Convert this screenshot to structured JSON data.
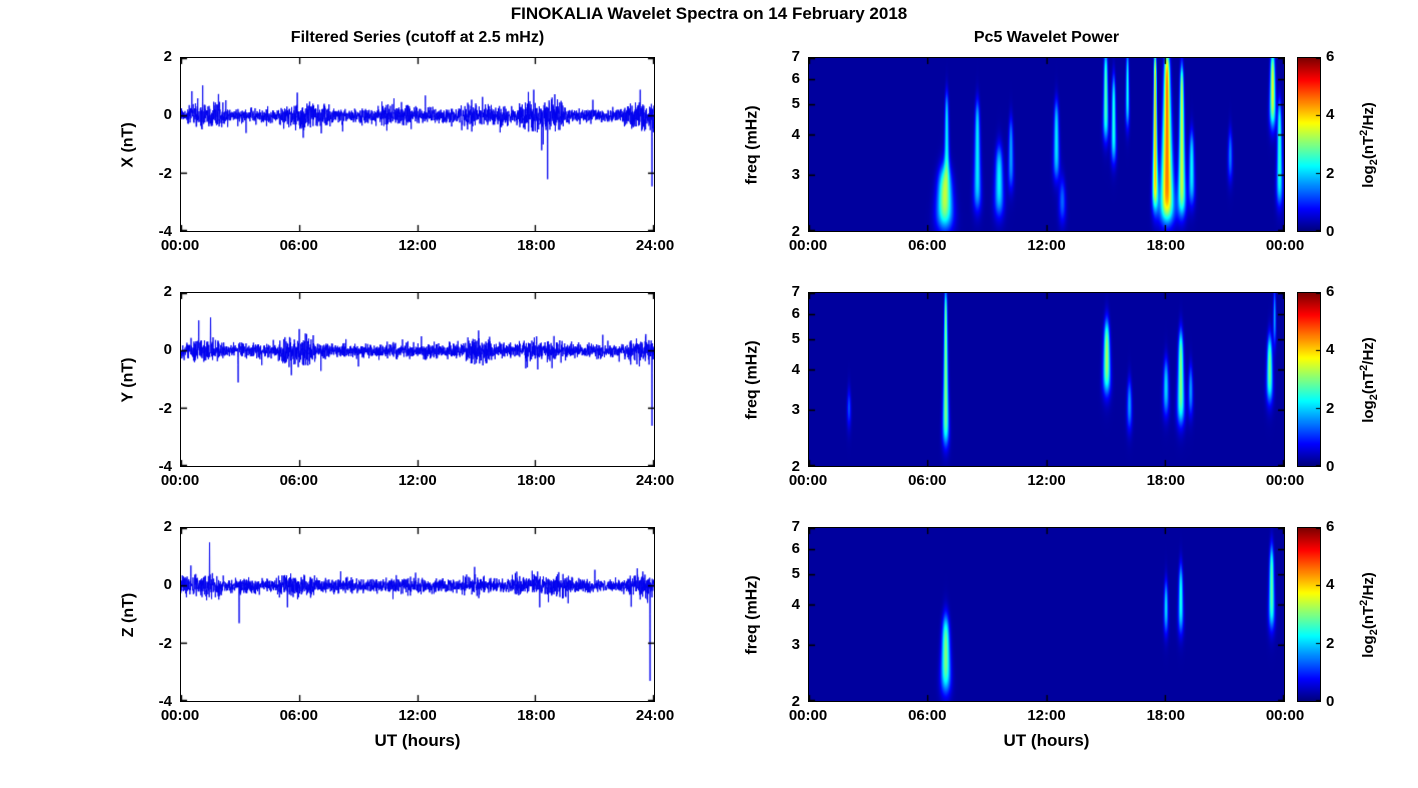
{
  "title": "FINOKALIA Wavelet Spectra on 14 February 2018",
  "left_column": {
    "title": "Filtered Series (cutoff at 2.5 mHz)",
    "xlabel": "UT (hours)",
    "x_ticks": [
      "00:00",
      "06:00",
      "12:00",
      "18:00",
      "24:00"
    ],
    "y_ticks": [
      "2",
      "0",
      "-2",
      "-4"
    ],
    "rows": [
      {
        "ylabel": "X (nT)"
      },
      {
        "ylabel": "Y (nT)"
      },
      {
        "ylabel": "Z (nT)"
      }
    ]
  },
  "right_column": {
    "title": "Pc5 Wavelet Power",
    "xlabel": "UT (hours)",
    "ylabel": "freq (mHz)",
    "x_ticks": [
      "00:00",
      "06:00",
      "12:00",
      "18:00",
      "00:00"
    ],
    "y_ticks": [
      "7",
      "6",
      "5",
      "4",
      "3",
      "2"
    ],
    "colorbar": {
      "ticks": [
        "6",
        "4",
        "2",
        "0"
      ],
      "label_parts": {
        "pre": "log",
        "sub": "2",
        "mid": "(nT",
        "sup": "2",
        "post": "/Hz)"
      }
    }
  },
  "chart_data": {
    "figure_title": "FINOKALIA Wavelet Spectra on 14 February 2018",
    "station": "FINOKALIA",
    "date": "14 February 2018",
    "time_series": {
      "type": "line",
      "title": "Filtered Series (cutoff at 2.5 mHz)",
      "color": "#0000EE",
      "x_range_hours": [
        0,
        24
      ],
      "y_range_nT": [
        -4,
        2
      ],
      "xlabel": "UT (hours)",
      "noise_std_nT": 0.12,
      "series": [
        {
          "name": "X (nT)",
          "seed": 101,
          "bursts": [
            [
              0.4,
              2.2,
              1.6
            ],
            [
              5.2,
              7.6,
              1.7
            ],
            [
              10.2,
              11.6,
              1.5
            ],
            [
              14.2,
              16.3,
              1.6
            ],
            [
              17.2,
              19.2,
              2.3
            ],
            [
              22.7,
              24,
              1.9
            ]
          ],
          "spikes": [
            [
              0.55,
              0.85
            ],
            [
              1.1,
              1.05
            ],
            [
              1.9,
              0.75
            ],
            [
              3.3,
              -0.6
            ],
            [
              5.9,
              0.8
            ],
            [
              8.2,
              -0.55
            ],
            [
              10.8,
              0.6
            ],
            [
              12.4,
              0.7
            ],
            [
              15.3,
              0.65
            ],
            [
              17.9,
              0.9
            ],
            [
              18.3,
              -1.2
            ],
            [
              18.6,
              -2.2
            ],
            [
              20.9,
              0.55
            ],
            [
              23.3,
              0.9
            ],
            [
              23.9,
              -2.45
            ]
          ]
        },
        {
          "name": "Y (nT)",
          "seed": 202,
          "bursts": [
            [
              0.5,
              2.0,
              1.5
            ],
            [
              5.2,
              6.6,
              2.0
            ],
            [
              14.7,
              15.7,
              1.7
            ],
            [
              17.4,
              19.1,
              1.5
            ],
            [
              22.9,
              24,
              1.7
            ]
          ],
          "spikes": [
            [
              0.9,
              1.05
            ],
            [
              1.5,
              1.15
            ],
            [
              2.9,
              -1.1
            ],
            [
              4.1,
              -0.5
            ],
            [
              5.6,
              -0.85
            ],
            [
              6.0,
              0.75
            ],
            [
              7.1,
              -0.7
            ],
            [
              9.0,
              -0.55
            ],
            [
              12.2,
              0.5
            ],
            [
              15.1,
              0.7
            ],
            [
              18.1,
              -0.65
            ],
            [
              21.4,
              0.55
            ],
            [
              23.9,
              -2.6
            ]
          ]
        },
        {
          "name": "Z (nT)",
          "seed": 303,
          "bursts": [
            [
              0.3,
              2.0,
              1.5
            ],
            [
              5.0,
              6.6,
              1.5
            ],
            [
              14.5,
              15.5,
              1.3
            ],
            [
              17.0,
              19.5,
              1.5
            ],
            [
              22.8,
              24,
              1.7
            ]
          ],
          "spikes": [
            [
              0.5,
              0.7
            ],
            [
              1.45,
              1.5
            ],
            [
              2.95,
              -1.3
            ],
            [
              5.4,
              -0.75
            ],
            [
              8.1,
              0.5
            ],
            [
              11.9,
              0.45
            ],
            [
              14.9,
              0.65
            ],
            [
              18.2,
              -0.75
            ],
            [
              21.0,
              0.55
            ],
            [
              23.15,
              0.6
            ],
            [
              23.8,
              -3.3
            ]
          ]
        }
      ]
    },
    "spectrograms": {
      "type": "heatmap",
      "title": "Pc5 Wavelet Power",
      "colormap": "jet",
      "x_range_hours": [
        0,
        24
      ],
      "freq_range_mHz": [
        2,
        7
      ],
      "freq_scale": "log",
      "colorbar_label": "log2(nT^2/Hz)",
      "colorbar_range_log2": [
        0,
        6
      ],
      "background_level": 0.18,
      "event_format": [
        "time_hours",
        "time_sigma_hours",
        "freq_lo_mHz",
        "freq_hi_mHz",
        "peak_log2_power"
      ],
      "panels": [
        {
          "name": "X",
          "events": [
            [
              6.85,
              0.22,
              2.1,
              3.1,
              3.3
            ],
            [
              6.95,
              0.1,
              3.0,
              5.3,
              2.0
            ],
            [
              8.5,
              0.12,
              2.4,
              5.0,
              2.0
            ],
            [
              9.6,
              0.14,
              2.3,
              3.6,
              2.1
            ],
            [
              10.2,
              0.1,
              2.8,
              4.4,
              1.6
            ],
            [
              12.5,
              0.12,
              3.0,
              5.0,
              2.0
            ],
            [
              12.8,
              0.1,
              2.2,
              2.8,
              1.4
            ],
            [
              15.0,
              0.13,
              4.0,
              7.2,
              2.6
            ],
            [
              15.4,
              0.11,
              3.4,
              6.0,
              2.3
            ],
            [
              16.1,
              0.1,
              4.4,
              7.2,
              2.2
            ],
            [
              17.5,
              0.09,
              2.4,
              7.2,
              3.9
            ],
            [
              18.1,
              0.2,
              2.2,
              7.2,
              4.4
            ],
            [
              18.85,
              0.12,
              2.3,
              6.5,
              3.3
            ],
            [
              19.35,
              0.1,
              2.5,
              4.0,
              2.1
            ],
            [
              21.3,
              0.09,
              3.0,
              4.0,
              1.5
            ],
            [
              23.45,
              0.16,
              4.4,
              7.2,
              3.5
            ],
            [
              23.8,
              0.1,
              2.5,
              5.0,
              2.4
            ]
          ]
        },
        {
          "name": "Y",
          "events": [
            [
              2.0,
              0.07,
              2.8,
              3.3,
              1.5
            ],
            [
              6.9,
              0.1,
              2.4,
              7.0,
              2.9
            ],
            [
              15.05,
              0.16,
              3.5,
              5.6,
              3.1
            ],
            [
              16.2,
              0.09,
              2.7,
              3.6,
              1.7
            ],
            [
              18.05,
              0.11,
              3.0,
              4.2,
              2.0
            ],
            [
              18.8,
              0.13,
              2.8,
              5.2,
              2.9
            ],
            [
              19.3,
              0.09,
              3.0,
              4.0,
              1.7
            ],
            [
              23.3,
              0.13,
              3.3,
              5.0,
              2.9
            ],
            [
              23.55,
              0.09,
              5.0,
              7.0,
              1.7
            ]
          ]
        },
        {
          "name": "Z",
          "events": [
            [
              6.9,
              0.14,
              2.2,
              3.6,
              2.9
            ],
            [
              18.05,
              0.09,
              3.4,
              4.6,
              2.1
            ],
            [
              18.8,
              0.11,
              3.4,
              5.2,
              2.3
            ],
            [
              23.4,
              0.13,
              3.5,
              6.0,
              2.7
            ]
          ]
        }
      ]
    }
  }
}
